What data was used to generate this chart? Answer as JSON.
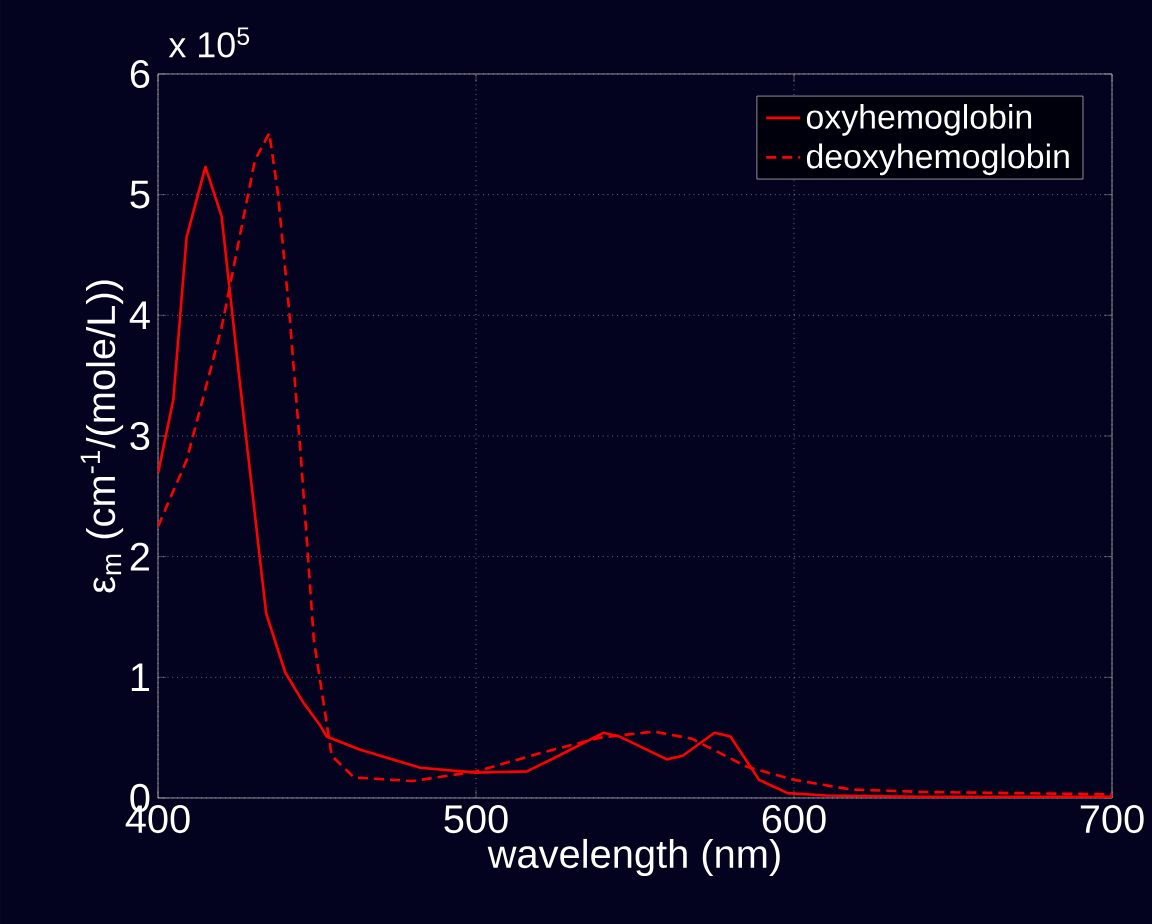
{
  "chart_data": {
    "type": "line",
    "xlabel": "wavelength (nm)",
    "ylabel": "ε$_{m}$ (cm$^{-1}$/(mole/L))",
    "annotations": [
      "x 10$^{5}$"
    ],
    "xlim": [
      400,
      700
    ],
    "xticks": [
      400,
      500,
      600,
      700
    ],
    "ylim": [
      0,
      6
    ],
    "yticks": [
      0,
      1,
      2,
      3,
      4,
      5,
      6
    ],
    "grid": true,
    "legend": "top right",
    "series": [
      {
        "name": "oxyhemoglobin",
        "color": "#ff0000",
        "line_style": "solid",
        "x": [
          400,
          404.8,
          409,
          414.9,
          420,
          425.4,
          434,
          440,
          445.7,
          451,
          453,
          463.6,
          482.5,
          500,
          516,
          526,
          540,
          545,
          560,
          565,
          575,
          580,
          589,
          598,
          610,
          640,
          700
        ],
        "values": [
          2.69,
          3.3,
          4.65,
          5.23,
          4.82,
          3.52,
          1.53,
          1.04,
          0.79,
          0.6,
          0.51,
          0.4,
          0.25,
          0.21,
          0.22,
          0.35,
          0.54,
          0.51,
          0.32,
          0.35,
          0.54,
          0.51,
          0.15,
          0.04,
          0.02,
          0.01,
          0.01
        ]
      },
      {
        "name": "deoxyhemoglobin",
        "color": "#ff0000",
        "line_style": "dashed",
        "x": [
          400,
          409,
          420,
          430.5,
          435,
          437.7,
          441.3,
          445,
          449,
          454.6,
          461.6,
          480,
          500,
          520,
          539,
          556,
          568,
          585,
          600,
          618,
          640,
          700
        ],
        "values": [
          2.25,
          2.8,
          3.9,
          5.29,
          5.51,
          5.01,
          4.02,
          2.8,
          1.31,
          0.35,
          0.17,
          0.14,
          0.22,
          0.37,
          0.5,
          0.55,
          0.49,
          0.26,
          0.15,
          0.07,
          0.05,
          0.03
        ]
      }
    ]
  }
}
